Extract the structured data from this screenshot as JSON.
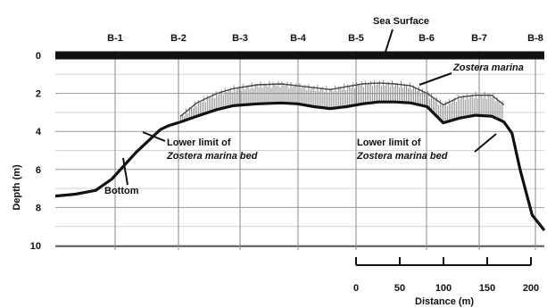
{
  "chart_data": {
    "type": "line",
    "title": "",
    "ylabel": "Depth (m)",
    "xlabel": "",
    "ylim": [
      10,
      0
    ],
    "yticks": [
      0,
      2,
      4,
      6,
      8,
      10
    ],
    "grid": true,
    "stations": [
      "B-1",
      "B-2",
      "B-3",
      "B-4",
      "B-5",
      "B-6",
      "B-7",
      "B-8"
    ],
    "scale_bar": {
      "label": "Distance (m)",
      "ticks": [
        "0",
        "50",
        "100",
        "150",
        "200"
      ]
    },
    "series": [
      {
        "name": "Bottom",
        "x": [
          0,
          25,
          50,
          70,
          85,
          100,
          120,
          130,
          140,
          155,
          175,
          200,
          220,
          250,
          280,
          300,
          320,
          340,
          360,
          380,
          400,
          420,
          440,
          460,
          480,
          500,
          520,
          540,
          555,
          565,
          575,
          590,
          605
        ],
        "y": [
          7.4,
          7.3,
          7.1,
          6.5,
          5.8,
          5.1,
          4.3,
          3.9,
          3.7,
          3.5,
          3.2,
          2.85,
          2.65,
          2.55,
          2.5,
          2.55,
          2.7,
          2.8,
          2.7,
          2.55,
          2.45,
          2.45,
          2.5,
          2.7,
          3.55,
          3.3,
          3.15,
          3.2,
          3.5,
          4.1,
          6.0,
          8.4,
          9.2
        ]
      },
      {
        "name": "Zostera marina",
        "x": [
          155,
          175,
          200,
          220,
          250,
          280,
          300,
          320,
          340,
          360,
          380,
          400,
          420,
          440,
          460,
          480,
          500,
          520,
          540,
          555
        ],
        "y": [
          3.2,
          2.5,
          2.0,
          1.75,
          1.55,
          1.5,
          1.6,
          1.7,
          1.8,
          1.65,
          1.5,
          1.45,
          1.5,
          1.6,
          2.0,
          2.6,
          2.2,
          2.1,
          2.1,
          2.6
        ]
      }
    ],
    "annotations": {
      "sea_surface": "Sea Surface",
      "zostera": "Zostera marina",
      "lower_limit_1_a": "Lower limit of",
      "lower_limit_1_b": "Zostera marina bed",
      "lower_limit_2_a": "Lower limit of",
      "lower_limit_2_b": "Zostera marina bed",
      "bottom": "Bottom"
    }
  }
}
